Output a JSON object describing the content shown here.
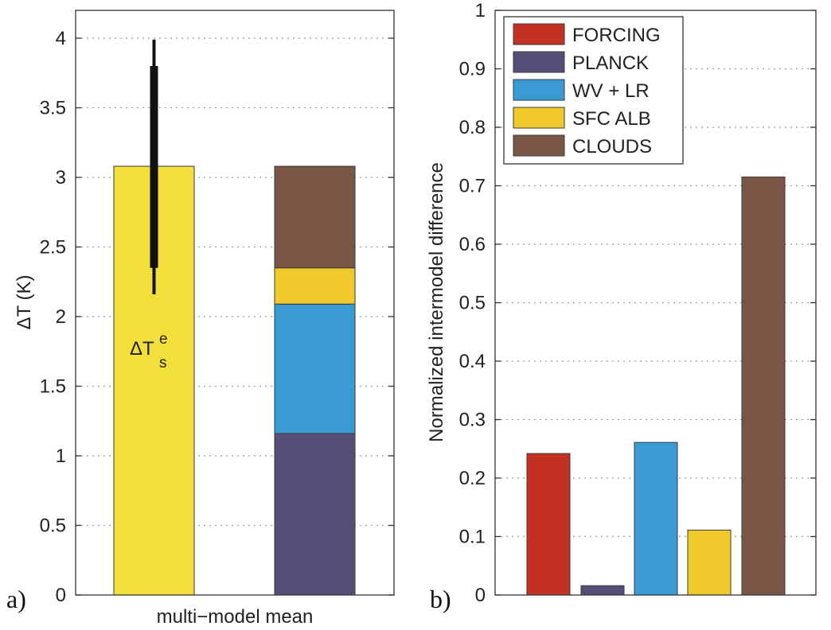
{
  "chart_data": [
    {
      "panel": "a)",
      "type": "bar",
      "xlabel": "multi−model mean",
      "ylabel": "ΔT (K)",
      "ylim": [
        0,
        4.2
      ],
      "yticks": [
        "0",
        "0.5",
        "1",
        "1.5",
        "2",
        "2.5",
        "3",
        "3.5",
        "4"
      ],
      "ytick_values": [
        0,
        0.5,
        1,
        1.5,
        2,
        2.5,
        3,
        3.5,
        4
      ],
      "grid": "horizontal dotted",
      "bar_total": {
        "value": 3.08,
        "color": "#f2df3c",
        "label_main": "ΔT",
        "label_sup": "e",
        "label_sub": "s",
        "error_thick": [
          2.35,
          3.8
        ],
        "error_thin": [
          2.16,
          3.99
        ]
      },
      "bar_stacked": {
        "segments": [
          {
            "name": "PLANCK",
            "value": 1.16,
            "color": "#574e78"
          },
          {
            "name": "WV + LR",
            "value": 0.93,
            "color": "#3a9ad4"
          },
          {
            "name": "SFC ALB",
            "value": 0.26,
            "color": "#f0c92a"
          },
          {
            "name": "CLOUDS",
            "value": 0.73,
            "color": "#7a5646"
          }
        ]
      }
    },
    {
      "panel": "b)",
      "type": "bar",
      "xlabel": "",
      "ylabel": "Normalized intermodel difference",
      "ylim": [
        0,
        1
      ],
      "yticks": [
        "0",
        "0.1",
        "0.2",
        "0.3",
        "0.4",
        "0.5",
        "0.6",
        "0.7",
        "0.8",
        "0.9",
        "1"
      ],
      "ytick_values": [
        0,
        0.1,
        0.2,
        0.3,
        0.4,
        0.5,
        0.6,
        0.7,
        0.8,
        0.9,
        1
      ],
      "grid": "horizontal dotted",
      "legend_position": "top-left",
      "categories": [
        "FORCING",
        "PLANCK",
        "WV + LR",
        "SFC ALB",
        "CLOUDS"
      ],
      "values": [
        0.242,
        0.016,
        0.261,
        0.111,
        0.715
      ],
      "colors": [
        "#c23122",
        "#574e78",
        "#3a9ad4",
        "#f0c92a",
        "#7a5646"
      ]
    }
  ]
}
